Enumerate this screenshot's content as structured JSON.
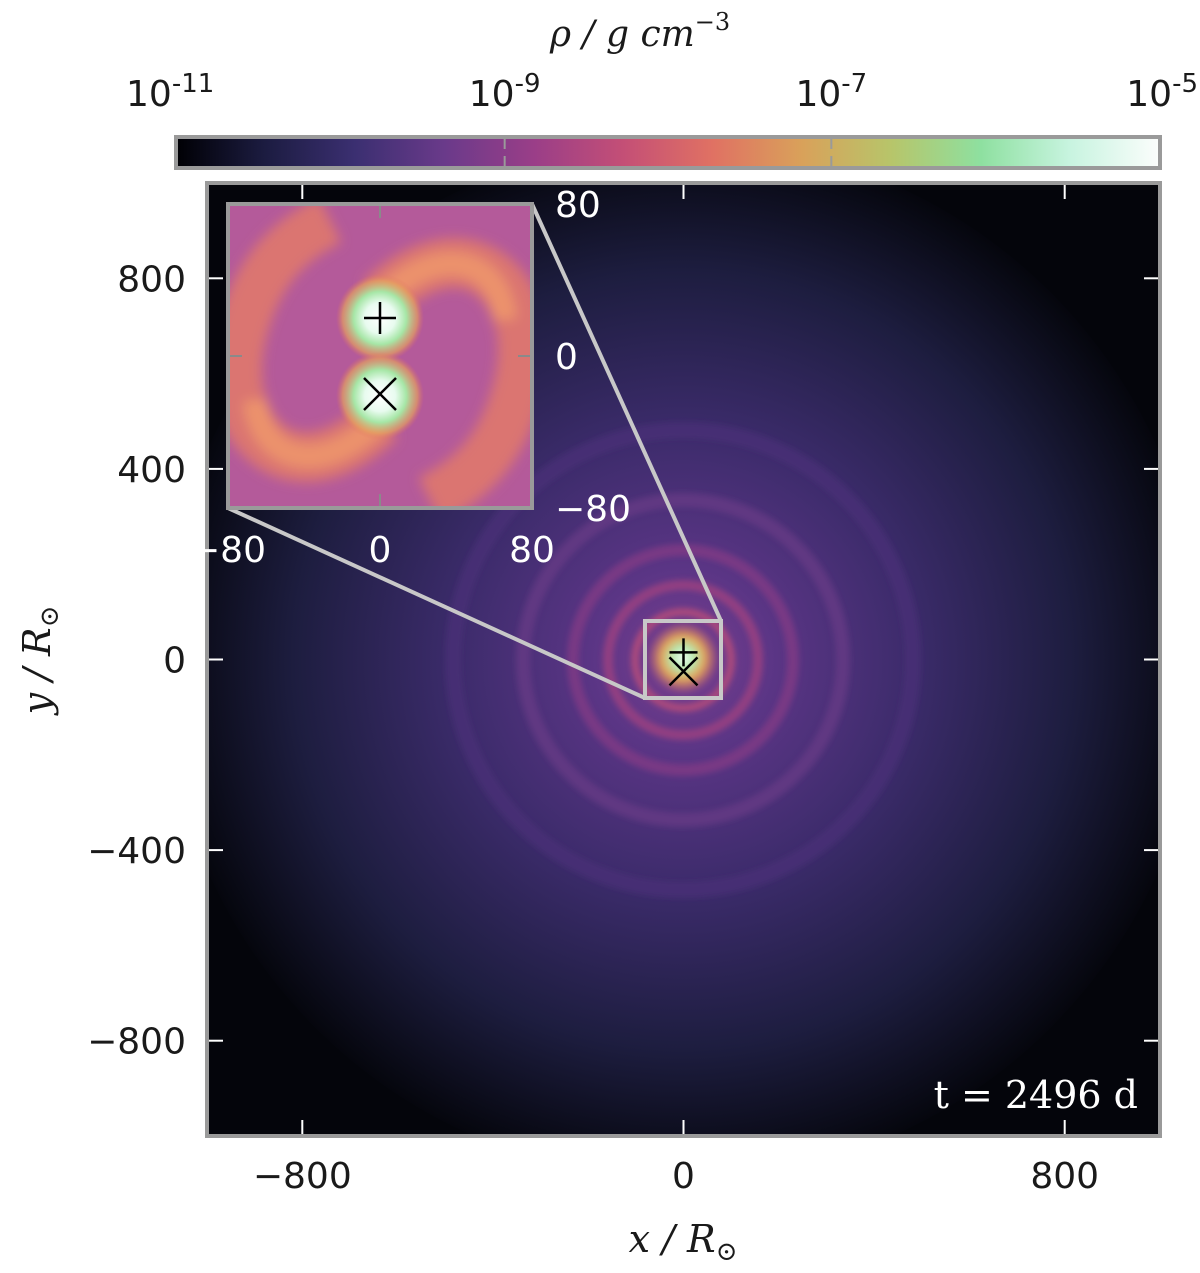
{
  "colorbar": {
    "label": "ρ / g cm",
    "label_exp": "−3",
    "ticks": [
      {
        "base": "10",
        "exp": "-11",
        "value": -11
      },
      {
        "base": "10",
        "exp": "-9",
        "value": -9
      },
      {
        "base": "10",
        "exp": "-7",
        "value": -7
      },
      {
        "base": "10",
        "exp": "-5",
        "value": -5
      }
    ],
    "range": [
      -11,
      -5
    ],
    "colors": [
      "#000004",
      "#1c1c41",
      "#3b2f71",
      "#6a3a8a",
      "#9a3e88",
      "#c44f76",
      "#e07163",
      "#d9a15a",
      "#b7c56a",
      "#8ee0a0",
      "#c8f4e0",
      "#fcfdfc"
    ]
  },
  "chart_data": {
    "type": "heatmap",
    "title": "",
    "xlabel": "x / R",
    "ylabel": "y / R",
    "xlabel_sub": "⊙",
    "ylabel_sub": "⊙",
    "xlim": [
      -1000,
      1000
    ],
    "ylim": [
      -1000,
      1000
    ],
    "xticks": [
      -800,
      0,
      800
    ],
    "yticks": [
      -800,
      -400,
      0,
      400,
      800
    ],
    "xtick_labels": [
      "−800",
      "0",
      "800"
    ],
    "ytick_labels": [
      "−800",
      "−400",
      "0",
      "400",
      "800"
    ],
    "annotation": "t = 2496 d",
    "markers": [
      {
        "symbol": "+",
        "x": 0,
        "y": 15
      },
      {
        "symbol": "×",
        "x": 0,
        "y": -25
      }
    ],
    "inset": {
      "xlim": [
        -80,
        80
      ],
      "ylim": [
        -80,
        80
      ],
      "xtick_labels": [
        "−80",
        "0",
        "80"
      ],
      "ytick_labels": [
        "80",
        "0",
        "−80"
      ],
      "markers": [
        {
          "symbol": "+",
          "x": 0,
          "y": 20
        },
        {
          "symbol": "×",
          "x": 0,
          "y": -20
        }
      ]
    }
  }
}
